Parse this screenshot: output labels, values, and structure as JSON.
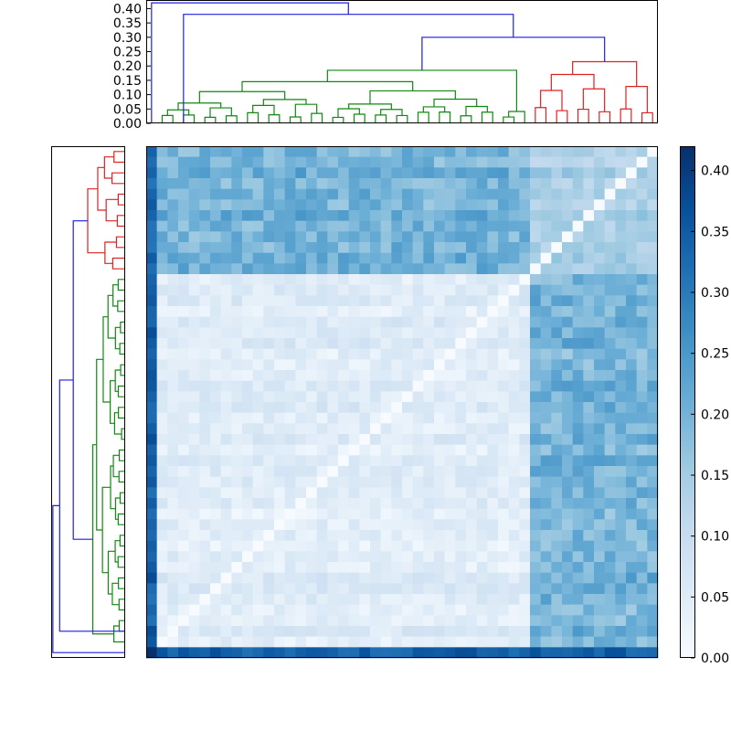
{
  "chart_data": [
    {
      "type": "dendrogram",
      "orientation": "top",
      "yticks": [
        "0.00",
        "0.05",
        "0.10",
        "0.15",
        "0.20",
        "0.25",
        "0.30",
        "0.35",
        "0.40"
      ],
      "ylim": [
        0,
        0.43
      ],
      "cluster_colors": [
        "#1f1fdd",
        "#118811",
        "#dd2222"
      ],
      "leaves": 48,
      "root_height": 0.42
    },
    {
      "type": "dendrogram",
      "orientation": "left",
      "leaves": 48,
      "cluster_colors": [
        "#1f1fdd",
        "#118811",
        "#dd2222"
      ]
    },
    {
      "type": "heatmap",
      "rows": 48,
      "cols": 48,
      "colormap": "Blues",
      "vmin": 0,
      "vmax": 0.42,
      "diagonal": 0.0,
      "block_values": {
        "green_green": 0.05,
        "red_red": 0.14,
        "green_red": 0.2,
        "outlier_row": 0.34
      }
    },
    {
      "type": "colorbar",
      "ticks": [
        "0.00",
        "0.05",
        "0.10",
        "0.15",
        "0.20",
        "0.25",
        "0.30",
        "0.35",
        "0.40"
      ],
      "range": [
        0,
        0.42
      ],
      "colors": [
        "#f7fbff",
        "#deebf7",
        "#c6dbef",
        "#9ecae1",
        "#6baed6",
        "#4292c6",
        "#2171b5",
        "#08519c",
        "#08306b"
      ]
    }
  ]
}
